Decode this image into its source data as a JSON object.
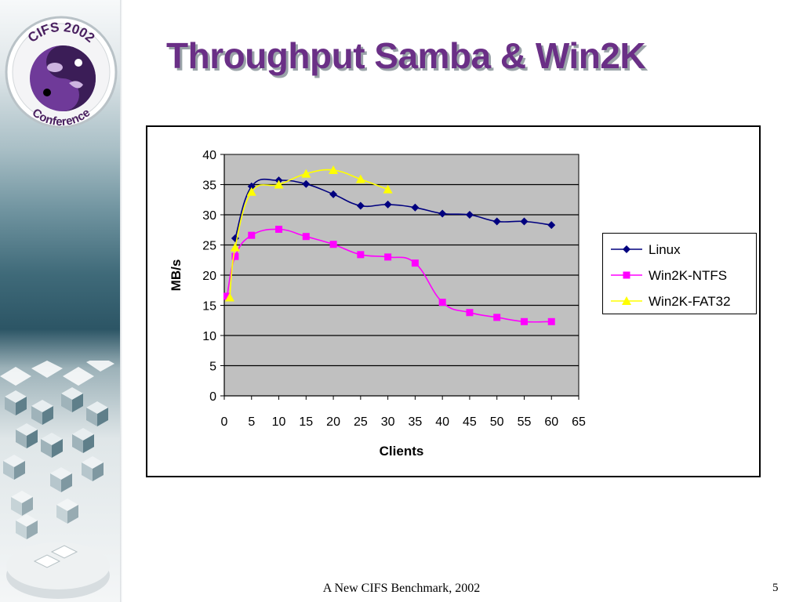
{
  "slide": {
    "title": "Throughput Samba & Win2K",
    "footer": "A New CIFS Benchmark, 2002",
    "page_number": "5",
    "logo": {
      "top_text": "CIFS 2002",
      "bottom_text": "Conference"
    }
  },
  "colors": {
    "title": "#6a2f86",
    "plot_bg": "#c0c0c0",
    "linux": "#00007f",
    "ntfs": "#ff00ff",
    "fat32": "#ffff00"
  },
  "chart_data": {
    "type": "line",
    "title": "",
    "xlabel": "Clients",
    "ylabel": "MB/s",
    "xlim": [
      0,
      65
    ],
    "ylim": [
      0,
      40
    ],
    "xticks": [
      0,
      5,
      10,
      15,
      20,
      25,
      30,
      35,
      40,
      45,
      50,
      55,
      60,
      65
    ],
    "yticks": [
      0,
      5,
      10,
      15,
      20,
      25,
      30,
      35,
      40
    ],
    "grid": "horizontal",
    "legend_position": "right",
    "series": [
      {
        "name": "Linux",
        "marker": "diamond",
        "color": "#00007f",
        "x": [
          2,
          5,
          10,
          15,
          20,
          25,
          30,
          35,
          40,
          45,
          50,
          55,
          60
        ],
        "y": [
          26.1,
          34.7,
          35.7,
          35.1,
          33.4,
          31.5,
          31.7,
          31.2,
          30.2,
          30.0,
          28.9,
          28.9,
          28.3
        ]
      },
      {
        "name": "Win2K-NTFS",
        "marker": "square",
        "color": "#ff00ff",
        "x": [
          0.5,
          2,
          5,
          10,
          15,
          20,
          25,
          30,
          35,
          40,
          45,
          50,
          55,
          60
        ],
        "y": [
          16.5,
          23.1,
          26.6,
          27.6,
          26.4,
          25.1,
          23.4,
          23.0,
          22.0,
          15.5,
          13.8,
          13.0,
          12.3,
          12.3
        ]
      },
      {
        "name": "Win2K-FAT32",
        "marker": "triangle",
        "color": "#ffff00",
        "x": [
          1,
          2,
          5,
          10,
          15,
          20,
          25,
          30
        ],
        "y": [
          16.3,
          24.6,
          33.8,
          35.0,
          36.8,
          37.4,
          35.9,
          34.2
        ]
      }
    ]
  }
}
